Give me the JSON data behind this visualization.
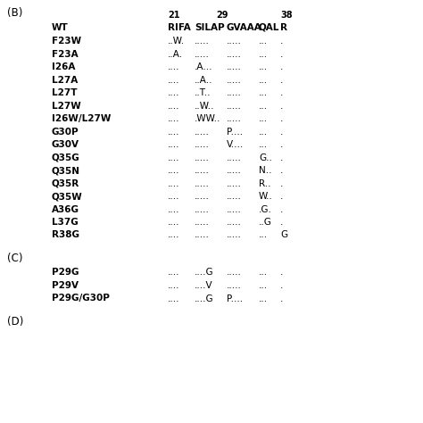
{
  "panel_B_label": "(B)",
  "panel_C_label": "(C)",
  "panel_D_label": "(D)",
  "num_21": "21",
  "num_29": "29",
  "num_38": "38",
  "wt_label": "WT",
  "header_cols": [
    "RIFA",
    "SILAP",
    "GVAAA",
    "QAL",
    "R"
  ],
  "rows_B": [
    [
      "F23W",
      "..W.",
      ".....",
      ".....",
      "...",
      "."
    ],
    [
      "F23A",
      "..A.",
      ".....",
      ".....",
      "...",
      "."
    ],
    [
      "I26A",
      "....",
      ".A...",
      ".....",
      "...",
      "."
    ],
    [
      "L27A",
      "....",
      "..A..",
      ".....",
      "...",
      "."
    ],
    [
      "L27T",
      "....",
      "..T..",
      ".....",
      "...",
      "."
    ],
    [
      "L27W",
      "....",
      "..W..",
      ".....",
      "...",
      "."
    ],
    [
      "I26W/L27W",
      "....",
      ".WW..",
      ".....",
      "...",
      "."
    ],
    [
      "G30P",
      "....",
      ".....",
      "P....",
      "...",
      "."
    ],
    [
      "G30V",
      "....",
      ".....",
      "V....",
      "...",
      "."
    ],
    [
      "Q35G",
      "....",
      ".....",
      ".....",
      "G..",
      "."
    ],
    [
      "Q35N",
      "....",
      ".....",
      ".....",
      "N..",
      "."
    ],
    [
      "Q35R",
      "....",
      ".....",
      ".....",
      "R..",
      "."
    ],
    [
      "Q35W",
      "....",
      ".....",
      ".....",
      "W..",
      "."
    ],
    [
      "A36G",
      "....",
      ".....",
      ".....",
      ".G.",
      "."
    ],
    [
      "L37G",
      "....",
      ".....",
      ".....",
      "..G",
      "."
    ],
    [
      "R38G",
      "....",
      ".....",
      ".....",
      "...",
      "G"
    ]
  ],
  "rows_C": [
    [
      "P29G",
      "....",
      "....G",
      ".....",
      "...",
      "."
    ],
    [
      "P29V",
      "....",
      "....V",
      ".....",
      "...",
      "."
    ],
    [
      "P29G/G30P",
      "....",
      "....G",
      "P....",
      "...",
      "."
    ]
  ],
  "font_size": 7.5,
  "bg_color": "#ffffff",
  "text_color": "#000000"
}
